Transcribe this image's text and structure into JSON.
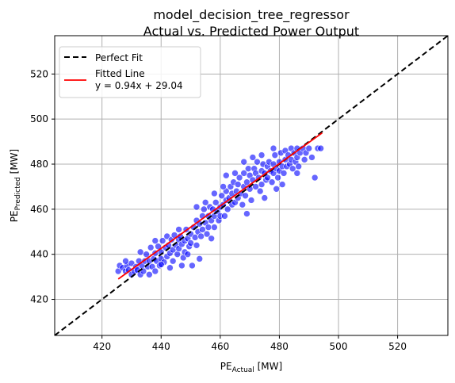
{
  "chart_data": {
    "type": "scatter",
    "title_line1": "model_decision_tree_regressor",
    "title_line2": "Actual vs. Predicted Power Output",
    "xlabel": {
      "base": "PE",
      "sub": "Actual",
      "unit": " [MW]"
    },
    "ylabel": {
      "base": "PE",
      "sub": "Predicted",
      "unit": " [MW]"
    },
    "xlim": [
      404,
      537
    ],
    "ylim": [
      404,
      537
    ],
    "xticks": [
      420,
      440,
      460,
      480,
      500,
      520
    ],
    "yticks": [
      420,
      440,
      460,
      480,
      500,
      520
    ],
    "grid": true,
    "legend_position": "top-left",
    "legend": {
      "perfect_fit": "Perfect Fit",
      "fitted_line_name": "Fitted Line",
      "fitted_line_eq": "y = 0.94x + 29.04"
    },
    "perfect_fit_line": {
      "slope": 1,
      "intercept": 0,
      "color": "#000000",
      "style": "dashed"
    },
    "fitted_line": {
      "slope": 0.94,
      "intercept": 29.04,
      "x_range": [
        425.5,
        494.5
      ],
      "color": "#ff0000"
    },
    "scatter_color": "#0000ff",
    "scatter_points": [
      [
        425.5,
        432.5
      ],
      [
        426,
        435
      ],
      [
        427,
        434
      ],
      [
        428,
        432.5
      ],
      [
        428.5,
        435
      ],
      [
        429,
        433
      ],
      [
        430,
        431
      ],
      [
        430,
        436
      ],
      [
        431,
        432.5
      ],
      [
        431.5,
        434.5
      ],
      [
        432,
        433
      ],
      [
        432.5,
        437
      ],
      [
        433,
        431
      ],
      [
        433.5,
        435
      ],
      [
        434,
        432.5
      ],
      [
        434.5,
        437
      ],
      [
        435,
        440
      ],
      [
        435.5,
        434.5
      ],
      [
        436,
        431
      ],
      [
        436,
        437
      ],
      [
        436.5,
        443
      ],
      [
        437,
        434.5
      ],
      [
        437.5,
        438
      ],
      [
        438,
        432.5
      ],
      [
        438,
        440.5
      ],
      [
        438.5,
        437
      ],
      [
        439,
        443.5
      ],
      [
        439.5,
        435
      ],
      [
        440,
        441
      ],
      [
        440,
        438
      ],
      [
        440.5,
        446
      ],
      [
        441,
        436.5
      ],
      [
        441.5,
        443
      ],
      [
        442,
        439
      ],
      [
        442,
        448
      ],
      [
        442.5,
        444
      ],
      [
        443,
        440.5
      ],
      [
        443.5,
        446.5
      ],
      [
        444,
        442
      ],
      [
        444,
        437
      ],
      [
        444.5,
        448.5
      ],
      [
        445,
        444
      ],
      [
        445.5,
        440
      ],
      [
        446,
        446.5
      ],
      [
        446,
        442.5
      ],
      [
        446.5,
        448
      ],
      [
        447,
        444.5
      ],
      [
        447.5,
        438.5
      ],
      [
        448,
        446
      ],
      [
        448,
        441
      ],
      [
        448.5,
        451
      ],
      [
        449,
        447
      ],
      [
        449.5,
        443.5
      ],
      [
        450,
        449
      ],
      [
        450,
        445
      ],
      [
        450.5,
        435
      ],
      [
        451,
        452
      ],
      [
        451.5,
        447.5
      ],
      [
        452,
        455
      ],
      [
        452,
        444
      ],
      [
        452.5,
        450
      ],
      [
        453,
        453.5
      ],
      [
        453.5,
        448
      ],
      [
        454,
        457
      ],
      [
        454,
        451
      ],
      [
        454.5,
        460
      ],
      [
        455,
        454
      ],
      [
        455.5,
        449
      ],
      [
        456,
        457
      ],
      [
        456,
        452
      ],
      [
        456.5,
        461
      ],
      [
        457,
        455
      ],
      [
        457.5,
        460
      ],
      [
        458,
        457
      ],
      [
        458,
        452
      ],
      [
        458.5,
        463
      ],
      [
        459,
        459
      ],
      [
        459.5,
        455
      ],
      [
        460,
        461
      ],
      [
        460,
        457
      ],
      [
        460.5,
        466
      ],
      [
        461,
        462
      ],
      [
        461.5,
        457
      ],
      [
        462,
        464
      ],
      [
        462,
        468
      ],
      [
        462.5,
        460
      ],
      [
        463,
        465
      ],
      [
        463.5,
        470
      ],
      [
        464,
        462
      ],
      [
        464,
        467
      ],
      [
        464.5,
        472
      ],
      [
        465,
        463
      ],
      [
        465.5,
        468
      ],
      [
        466,
        465
      ],
      [
        466,
        471
      ],
      [
        466.5,
        474
      ],
      [
        467,
        467
      ],
      [
        467.5,
        462
      ],
      [
        468,
        470
      ],
      [
        468,
        476
      ],
      [
        468.5,
        466
      ],
      [
        469,
        472
      ],
      [
        469.5,
        478
      ],
      [
        470,
        469
      ],
      [
        470,
        475
      ],
      [
        470.5,
        464
      ],
      [
        471,
        473
      ],
      [
        471.5,
        478
      ],
      [
        472,
        470
      ],
      [
        472,
        476
      ],
      [
        472.5,
        481
      ],
      [
        473,
        474
      ],
      [
        473.5,
        468
      ],
      [
        474,
        477
      ],
      [
        474,
        471
      ],
      [
        474.5,
        480
      ],
      [
        475,
        476
      ],
      [
        475.5,
        473
      ],
      [
        476,
        479
      ],
      [
        476,
        474
      ],
      [
        476.5,
        481
      ],
      [
        477,
        477
      ],
      [
        477.5,
        472
      ],
      [
        478,
        480
      ],
      [
        478,
        476
      ],
      [
        478.5,
        484
      ],
      [
        479,
        478
      ],
      [
        479.5,
        474
      ],
      [
        480,
        481
      ],
      [
        480,
        477
      ],
      [
        480.5,
        485
      ],
      [
        481,
        479
      ],
      [
        481.5,
        476
      ],
      [
        482,
        482
      ],
      [
        482,
        486
      ],
      [
        482.5,
        479
      ],
      [
        483,
        484
      ],
      [
        483.5,
        480
      ],
      [
        484,
        487
      ],
      [
        484,
        482
      ],
      [
        484.5,
        478
      ],
      [
        485,
        485
      ],
      [
        485.5,
        481
      ],
      [
        486,
        487
      ],
      [
        486,
        483
      ],
      [
        486.5,
        479
      ],
      [
        487,
        485
      ],
      [
        488,
        487
      ],
      [
        488.5,
        482
      ],
      [
        489,
        485
      ],
      [
        490,
        487
      ],
      [
        491,
        483
      ],
      [
        492,
        474
      ],
      [
        493,
        487
      ],
      [
        494,
        487
      ],
      [
        447,
        435
      ],
      [
        443,
        434
      ],
      [
        440,
        435.5
      ],
      [
        449,
        440
      ],
      [
        455,
        463
      ],
      [
        458,
        467
      ],
      [
        452,
        461
      ],
      [
        475,
        465
      ],
      [
        479,
        469
      ],
      [
        471,
        483
      ],
      [
        468,
        481
      ],
      [
        462,
        475
      ],
      [
        453,
        438
      ],
      [
        457,
        447
      ],
      [
        446,
        451
      ],
      [
        433,
        441
      ],
      [
        438,
        446
      ],
      [
        428,
        437
      ],
      [
        486,
        476
      ],
      [
        481,
        471
      ],
      [
        465,
        476
      ],
      [
        474,
        484
      ],
      [
        469,
        458
      ],
      [
        478,
        487
      ],
      [
        461,
        470
      ]
    ]
  }
}
